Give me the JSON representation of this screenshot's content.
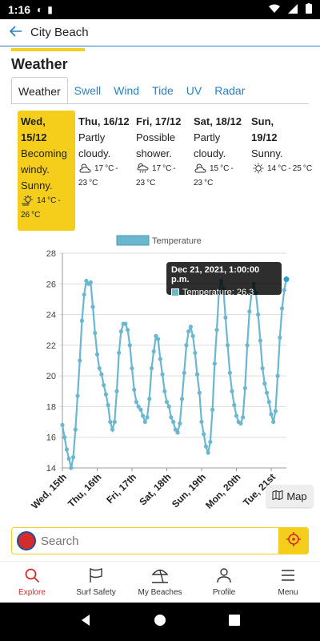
{
  "status": {
    "time": "1:16"
  },
  "header": {
    "title": "City Beach"
  },
  "section_title": "Weather",
  "tabs": [
    {
      "label": "Weather",
      "active": true
    },
    {
      "label": "Swell"
    },
    {
      "label": "Wind"
    },
    {
      "label": "Tide"
    },
    {
      "label": "UV"
    },
    {
      "label": "Radar"
    }
  ],
  "days": [
    {
      "name": "Wed, 15/12",
      "desc": "Becoming windy. Sunny.",
      "icon": "sun-wind-icon",
      "min": "14",
      "max": "26",
      "unit": "°C",
      "active": true
    },
    {
      "name": "Thu, 16/12",
      "desc": "Partly cloudy.",
      "icon": "partly-cloudy-icon",
      "min": "17",
      "max": "23",
      "unit": "°C"
    },
    {
      "name": "Fri, 17/12",
      "desc": "Possible shower.",
      "icon": "shower-icon",
      "min": "17",
      "max": "23",
      "unit": "°C"
    },
    {
      "name": "Sat, 18/12",
      "desc": "Partly cloudy.",
      "icon": "partly-cloudy-icon",
      "min": "15",
      "max": "23",
      "unit": "°C"
    },
    {
      "name": "Sun, 19/12",
      "desc": "Sunny.",
      "icon": "sun-icon",
      "min": "14",
      "max": "25",
      "unit": "°C"
    }
  ],
  "colors": {
    "accent": "#f5cd1b",
    "link": "#2a7fc0",
    "series": "#6ab7cf",
    "brand_red": "#d62b2b"
  },
  "chart_data": {
    "type": "line",
    "legend": "Temperature",
    "ylim": [
      14,
      28
    ],
    "yticks": [
      14,
      16,
      18,
      20,
      22,
      24,
      26,
      28
    ],
    "xticks": [
      "Wed, 15th",
      "Thu, 16th",
      "Fri, 17th",
      "Sat, 18th",
      "Sun, 19th",
      "Mon, 20th",
      "Tue, 21st"
    ],
    "series": [
      {
        "name": "Temperature",
        "values": [
          16.8,
          16.0,
          15.2,
          14.6,
          14.0,
          14.7,
          16.5,
          18.7,
          21.0,
          23.6,
          25.3,
          26.2,
          26.0,
          26.1,
          24.5,
          22.8,
          21.4,
          20.5,
          20.1,
          19.4,
          18.8,
          18.1,
          17.0,
          16.5,
          17.0,
          19.0,
          21.5,
          22.9,
          23.4,
          23.4,
          23.0,
          22.0,
          20.5,
          19.1,
          18.3,
          18.0,
          17.8,
          17.4,
          17.0,
          17.3,
          18.5,
          20.5,
          21.6,
          22.6,
          22.4,
          21.1,
          20.1,
          19.0,
          18.3,
          18.0,
          17.3,
          17.0,
          16.5,
          16.3,
          16.9,
          18.5,
          20.2,
          22.0,
          22.9,
          23.2,
          22.6,
          21.5,
          20.1,
          18.9,
          17.0,
          16.2,
          15.4,
          15.0,
          15.7,
          17.8,
          20.8,
          23.0,
          25.5,
          26.2,
          25.7,
          23.8,
          22.0,
          20.2,
          19.0,
          18.1,
          17.4,
          17.0,
          16.9,
          17.3,
          19.2,
          22.0,
          24.2,
          25.4,
          26.0,
          25.4,
          24.0,
          22.3,
          20.5,
          19.5,
          18.9,
          18.3,
          17.5,
          17.0,
          17.7,
          20.0,
          22.5,
          24.4,
          25.6,
          26.3
        ],
        "x_start": "Wed, 15th",
        "points_per_day": 16
      }
    ],
    "tooltip": {
      "title": "Dec 21, 2021, 1:00:00 p.m.",
      "label": "Temperature: 26.3"
    }
  },
  "map_button": {
    "label": "Map"
  },
  "search": {
    "placeholder": "Search"
  },
  "bottom_nav": [
    {
      "label": "Explore",
      "icon": "search-icon",
      "active": true
    },
    {
      "label": "Surf Safety",
      "icon": "flag-icon"
    },
    {
      "label": "My Beaches",
      "icon": "umbrella-icon"
    },
    {
      "label": "Profile",
      "icon": "person-icon"
    },
    {
      "label": "Menu",
      "icon": "menu-icon"
    }
  ]
}
